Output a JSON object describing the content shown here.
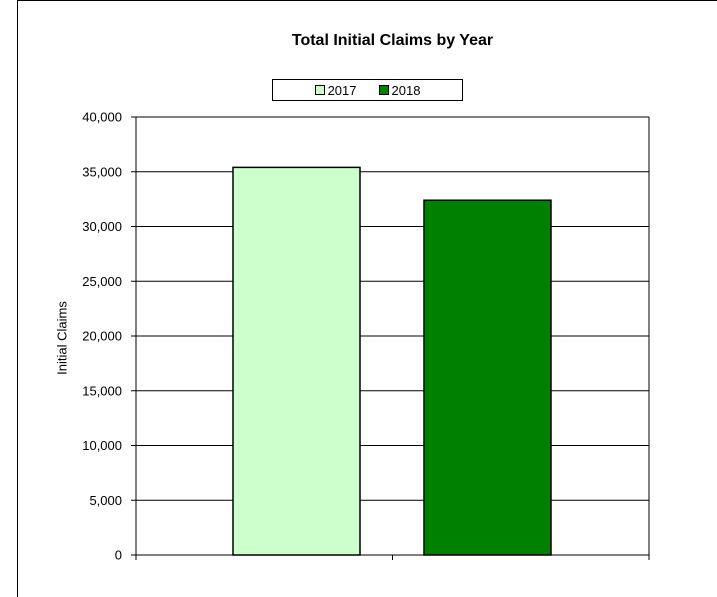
{
  "chart_data": {
    "type": "bar",
    "title": "Total Initial Claims by Year",
    "ylabel": "Initial Claims",
    "xlabel": "",
    "ylim": [
      0,
      40000
    ],
    "yticks": [
      "0",
      "5,000",
      "10,000",
      "15,000",
      "20,000",
      "25,000",
      "30,000",
      "35,000",
      "40,000"
    ],
    "ytick_values": [
      0,
      5000,
      10000,
      15000,
      20000,
      25000,
      30000,
      35000,
      40000
    ],
    "grid": true,
    "legend_position": "top",
    "series": [
      {
        "name": "2017",
        "values": [
          35400
        ],
        "color": "#ccffcc"
      },
      {
        "name": "2018",
        "values": [
          32400
        ],
        "color": "#008000"
      }
    ]
  }
}
